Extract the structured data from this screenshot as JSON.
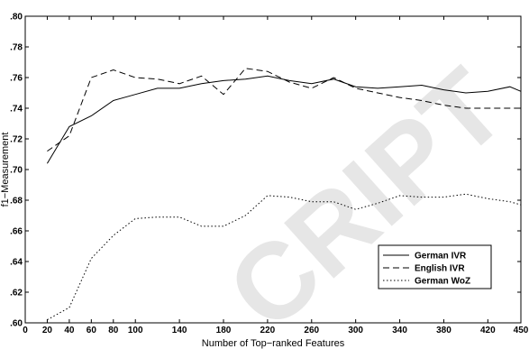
{
  "chart_data": {
    "type": "line",
    "xlabel": "Number of Top−ranked Features",
    "ylabel": "f1−Measurement",
    "xlim": [
      0,
      450
    ],
    "ylim": [
      0.6,
      0.8
    ],
    "x_ticks": [
      0,
      20,
      40,
      60,
      80,
      100,
      140,
      180,
      220,
      260,
      300,
      340,
      380,
      420,
      450
    ],
    "y_ticks": [
      0.6,
      0.62,
      0.64,
      0.66,
      0.68,
      0.7,
      0.72,
      0.74,
      0.76,
      0.78,
      0.8
    ],
    "y_tick_labels": [
      ".60",
      ".62",
      ".64",
      ".66",
      ".68",
      ".70",
      ".72",
      ".74",
      ".76",
      ".78",
      ".80"
    ],
    "grid": false,
    "legend_position": "lower-right",
    "series": [
      {
        "name": "German IVR",
        "style": "solid",
        "x": [
          20,
          40,
          60,
          80,
          100,
          120,
          140,
          160,
          180,
          200,
          220,
          240,
          260,
          280,
          300,
          320,
          340,
          360,
          380,
          400,
          420,
          440,
          450
        ],
        "y": [
          0.704,
          0.728,
          0.735,
          0.745,
          0.749,
          0.753,
          0.753,
          0.756,
          0.758,
          0.759,
          0.761,
          0.758,
          0.756,
          0.759,
          0.754,
          0.753,
          0.754,
          0.755,
          0.752,
          0.75,
          0.751,
          0.754,
          0.751
        ]
      },
      {
        "name": "English IVR",
        "style": "dashed",
        "x": [
          20,
          40,
          60,
          80,
          100,
          120,
          140,
          160,
          180,
          200,
          220,
          240,
          260,
          280,
          300,
          320,
          340,
          360,
          380,
          400,
          420,
          440,
          450
        ],
        "y": [
          0.712,
          0.722,
          0.76,
          0.765,
          0.76,
          0.759,
          0.756,
          0.761,
          0.749,
          0.766,
          0.764,
          0.757,
          0.753,
          0.76,
          0.753,
          0.75,
          0.747,
          0.745,
          0.742,
          0.74,
          0.74,
          0.74,
          0.74
        ]
      },
      {
        "name": "German WoZ",
        "style": "dotted",
        "x": [
          20,
          40,
          60,
          80,
          100,
          120,
          140,
          160,
          180,
          200,
          220,
          240,
          260,
          280,
          300,
          320,
          340,
          360,
          380,
          400,
          420,
          440,
          450
        ],
        "y": [
          0.602,
          0.61,
          0.642,
          0.657,
          0.668,
          0.669,
          0.669,
          0.663,
          0.663,
          0.67,
          0.683,
          0.682,
          0.679,
          0.679,
          0.674,
          0.678,
          0.683,
          0.682,
          0.682,
          0.684,
          0.681,
          0.679,
          0.677
        ]
      }
    ]
  },
  "watermark": "CRIPT",
  "colors": {
    "line": "#000000",
    "watermark": "#e6e6e6",
    "background": "#ffffff"
  }
}
